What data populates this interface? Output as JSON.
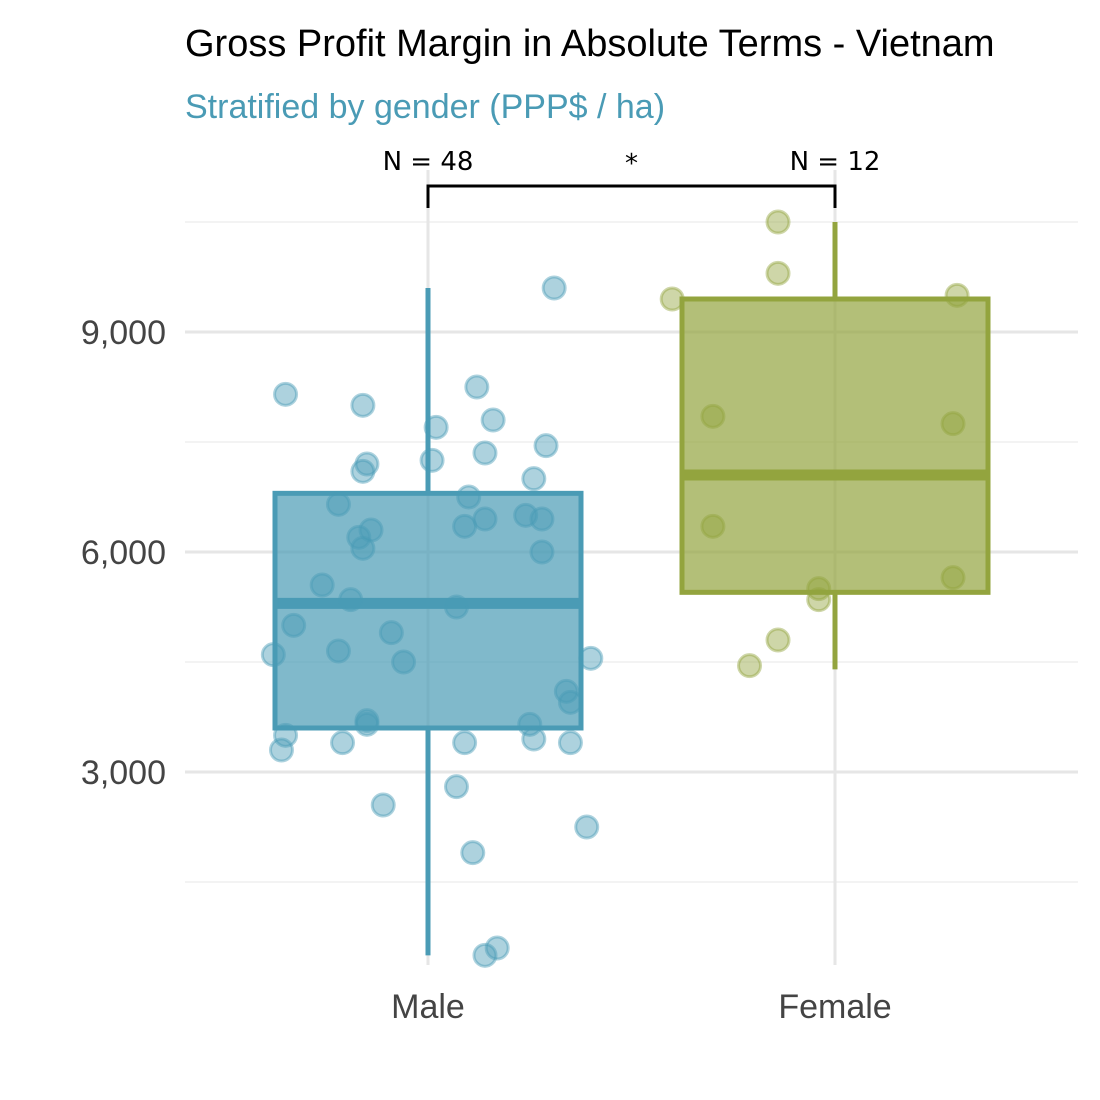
{
  "colors": {
    "male": "#4a9bb5",
    "female": "#93a43e",
    "subtitle": "#4a9bb5",
    "grid": "#e6e6e6"
  },
  "chart_data": {
    "type": "box",
    "title": "Gross Profit Margin in Absolute Terms - Vietnam",
    "subtitle": "Stratified by gender (PPP$ / ha)",
    "xlabel": "",
    "ylabel": "",
    "ylim": [
      0,
      10900
    ],
    "yticks": [
      3000,
      6000,
      9000
    ],
    "ytick_labels": [
      "3,000",
      "6,000",
      "9,000"
    ],
    "categories": [
      "Male",
      "Female"
    ],
    "grid": true,
    "legend": "none",
    "significance": {
      "label": "*",
      "between": [
        "Male",
        "Female"
      ]
    },
    "series": [
      {
        "name": "Male",
        "n_label": "N = 48",
        "box": {
          "whisker_low": 500,
          "q1": 3600,
          "median": 5300,
          "q3": 6800,
          "whisker_high": 9600
        },
        "points": [
          [
            -0.35,
            8150
          ],
          [
            -0.38,
            4600
          ],
          [
            -0.35,
            3500
          ],
          [
            -0.36,
            3300
          ],
          [
            -0.33,
            5000
          ],
          [
            -0.26,
            5550
          ],
          [
            -0.22,
            6650
          ],
          [
            -0.22,
            4650
          ],
          [
            -0.21,
            3400
          ],
          [
            -0.19,
            5350
          ],
          [
            -0.17,
            6200
          ],
          [
            -0.16,
            6050
          ],
          [
            -0.15,
            3700
          ],
          [
            -0.15,
            3650
          ],
          [
            -0.16,
            7100
          ],
          [
            -0.15,
            7200
          ],
          [
            -0.14,
            6300
          ],
          [
            -0.16,
            8000
          ],
          [
            -0.11,
            2550
          ],
          [
            -0.09,
            4900
          ],
          [
            -0.06,
            4500
          ],
          [
            0.02,
            7700
          ],
          [
            0.01,
            7250
          ],
          [
            0.07,
            5250
          ],
          [
            0.07,
            2800
          ],
          [
            0.09,
            3400
          ],
          [
            0.09,
            6350
          ],
          [
            0.1,
            6750
          ],
          [
            0.11,
            1900
          ],
          [
            0.12,
            8250
          ],
          [
            0.14,
            500
          ],
          [
            0.14,
            6450
          ],
          [
            0.14,
            7350
          ],
          [
            0.16,
            7800
          ],
          [
            0.17,
            600
          ],
          [
            0.24,
            6500
          ],
          [
            0.25,
            3650
          ],
          [
            0.26,
            3450
          ],
          [
            0.26,
            7000
          ],
          [
            0.28,
            6450
          ],
          [
            0.28,
            6000
          ],
          [
            0.29,
            7450
          ],
          [
            0.31,
            9600
          ],
          [
            0.34,
            4100
          ],
          [
            0.35,
            3950
          ],
          [
            0.35,
            3400
          ],
          [
            0.4,
            4550
          ],
          [
            0.39,
            2250
          ]
        ]
      },
      {
        "name": "Female",
        "n_label": "N = 12",
        "box": {
          "whisker_low": 4400,
          "q1": 5450,
          "median": 7050,
          "q3": 9450,
          "whisker_high": 10500
        },
        "points": [
          [
            -0.4,
            9450
          ],
          [
            -0.3,
            6350
          ],
          [
            -0.3,
            7850
          ],
          [
            -0.21,
            4450
          ],
          [
            -0.14,
            4800
          ],
          [
            -0.14,
            9800
          ],
          [
            -0.14,
            10500
          ],
          [
            -0.04,
            5500
          ],
          [
            -0.04,
            5350
          ],
          [
            0.29,
            5650
          ],
          [
            0.29,
            7750
          ],
          [
            0.3,
            9500
          ]
        ]
      }
    ]
  }
}
